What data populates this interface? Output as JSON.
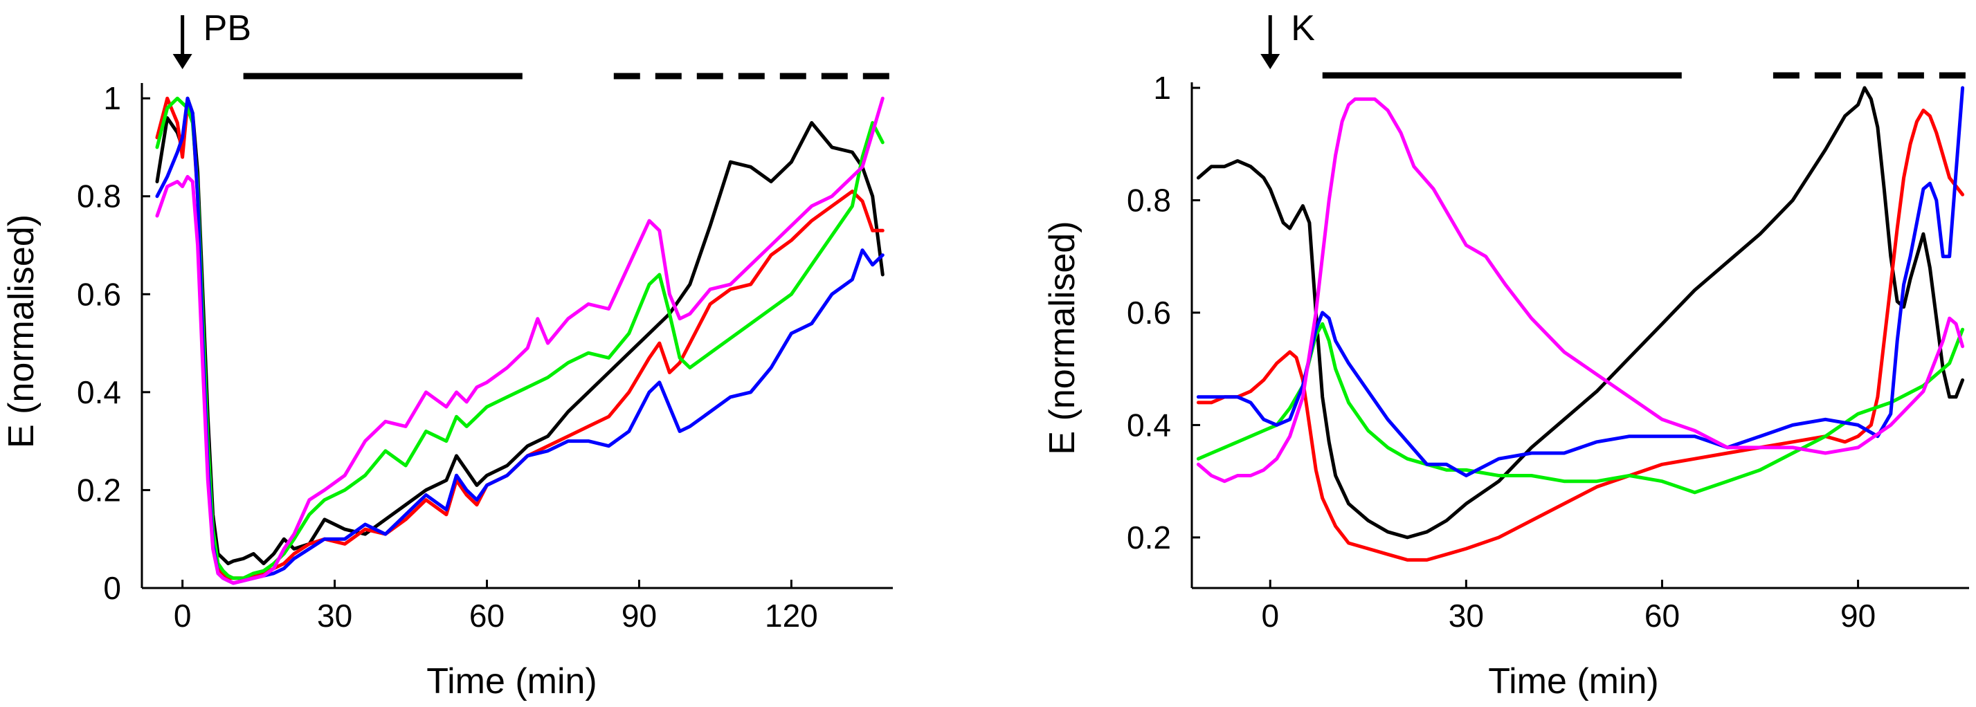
{
  "chart_data": [
    {
      "type": "line",
      "panel": "left",
      "title": "",
      "xlabel": "Time (min)",
      "ylabel": "E (normalised)",
      "xlim": [
        -8,
        140
      ],
      "ylim": [
        0,
        1.02
      ],
      "xticks": [
        0,
        30,
        60,
        90,
        120
      ],
      "yticks": [
        0,
        0.2,
        0.4,
        0.6,
        0.8,
        1
      ],
      "ytick_labels": [
        "0",
        "0.2",
        "0.4",
        "0.6",
        "0.8",
        "1"
      ],
      "arrow": {
        "label": "PB",
        "x": 0
      },
      "solid_bar": [
        12,
        67
      ],
      "dashed_bar": [
        85,
        140
      ],
      "series": [
        {
          "name": "black",
          "color": "#000000",
          "x": [
            -5,
            -3,
            -1,
            0,
            1,
            2,
            3,
            4,
            5,
            6,
            7,
            8,
            9,
            10,
            12,
            14,
            16,
            18,
            20,
            22,
            25,
            28,
            32,
            36,
            40,
            44,
            48,
            52,
            54,
            56,
            58,
            60,
            64,
            68,
            72,
            76,
            80,
            84,
            88,
            92,
            96,
            100,
            104,
            108,
            112,
            116,
            120,
            124,
            128,
            132,
            134,
            136,
            138
          ],
          "y": [
            0.83,
            0.96,
            0.93,
            0.9,
            1.0,
            0.97,
            0.85,
            0.6,
            0.35,
            0.15,
            0.07,
            0.06,
            0.05,
            0.055,
            0.06,
            0.07,
            0.05,
            0.07,
            0.1,
            0.08,
            0.09,
            0.14,
            0.12,
            0.11,
            0.14,
            0.17,
            0.2,
            0.22,
            0.27,
            0.24,
            0.21,
            0.23,
            0.25,
            0.29,
            0.31,
            0.36,
            0.4,
            0.44,
            0.48,
            0.52,
            0.56,
            0.62,
            0.74,
            0.87,
            0.86,
            0.83,
            0.87,
            0.95,
            0.9,
            0.89,
            0.86,
            0.8,
            0.64
          ]
        },
        {
          "name": "red",
          "color": "#ff0000",
          "x": [
            -5,
            -3,
            -1,
            0,
            1,
            2,
            3,
            4,
            5,
            6,
            7,
            8,
            9,
            10,
            12,
            14,
            16,
            18,
            20,
            22,
            25,
            28,
            32,
            36,
            40,
            44,
            48,
            52,
            54,
            56,
            58,
            60,
            64,
            68,
            72,
            76,
            80,
            84,
            88,
            92,
            94,
            96,
            98,
            100,
            104,
            108,
            112,
            116,
            120,
            124,
            128,
            132,
            134,
            136,
            138
          ],
          "y": [
            0.92,
            1.0,
            0.95,
            0.88,
            0.99,
            0.96,
            0.8,
            0.5,
            0.25,
            0.1,
            0.04,
            0.03,
            0.02,
            0.02,
            0.02,
            0.025,
            0.03,
            0.04,
            0.05,
            0.07,
            0.09,
            0.1,
            0.09,
            0.12,
            0.11,
            0.14,
            0.18,
            0.15,
            0.22,
            0.19,
            0.17,
            0.21,
            0.23,
            0.27,
            0.29,
            0.31,
            0.33,
            0.35,
            0.4,
            0.47,
            0.5,
            0.44,
            0.46,
            0.5,
            0.58,
            0.61,
            0.62,
            0.68,
            0.71,
            0.75,
            0.78,
            0.81,
            0.79,
            0.73,
            0.73
          ]
        },
        {
          "name": "green",
          "color": "#00ee00",
          "x": [
            -5,
            -3,
            -1,
            0,
            1,
            2,
            3,
            4,
            5,
            6,
            7,
            8,
            9,
            10,
            12,
            14,
            16,
            18,
            20,
            22,
            25,
            28,
            32,
            36,
            40,
            44,
            48,
            52,
            54,
            56,
            58,
            60,
            64,
            68,
            72,
            76,
            80,
            84,
            88,
            92,
            94,
            96,
            98,
            100,
            104,
            108,
            112,
            116,
            120,
            124,
            128,
            132,
            134,
            136,
            138
          ],
          "y": [
            0.9,
            0.98,
            1.0,
            0.99,
            0.98,
            0.95,
            0.82,
            0.55,
            0.3,
            0.12,
            0.05,
            0.035,
            0.025,
            0.02,
            0.02,
            0.03,
            0.035,
            0.05,
            0.07,
            0.1,
            0.15,
            0.18,
            0.2,
            0.23,
            0.28,
            0.25,
            0.32,
            0.3,
            0.35,
            0.33,
            0.35,
            0.37,
            0.39,
            0.41,
            0.43,
            0.46,
            0.48,
            0.47,
            0.52,
            0.62,
            0.64,
            0.56,
            0.47,
            0.45,
            0.48,
            0.51,
            0.54,
            0.57,
            0.6,
            0.66,
            0.72,
            0.78,
            0.88,
            0.95,
            0.91
          ]
        },
        {
          "name": "blue",
          "color": "#0000ff",
          "x": [
            -5,
            -3,
            -1,
            0,
            1,
            2,
            3,
            4,
            5,
            6,
            7,
            8,
            9,
            10,
            12,
            14,
            16,
            18,
            20,
            22,
            25,
            28,
            32,
            36,
            40,
            44,
            48,
            52,
            54,
            56,
            58,
            60,
            64,
            68,
            72,
            76,
            80,
            84,
            88,
            92,
            94,
            96,
            98,
            100,
            104,
            108,
            112,
            116,
            120,
            124,
            128,
            132,
            134,
            136,
            138
          ],
          "y": [
            0.8,
            0.84,
            0.89,
            0.92,
            1.0,
            0.97,
            0.8,
            0.5,
            0.25,
            0.09,
            0.03,
            0.02,
            0.015,
            0.01,
            0.015,
            0.02,
            0.025,
            0.03,
            0.04,
            0.06,
            0.08,
            0.1,
            0.1,
            0.13,
            0.11,
            0.15,
            0.19,
            0.16,
            0.23,
            0.2,
            0.18,
            0.21,
            0.23,
            0.27,
            0.28,
            0.3,
            0.3,
            0.29,
            0.32,
            0.4,
            0.42,
            0.37,
            0.32,
            0.33,
            0.36,
            0.39,
            0.4,
            0.45,
            0.52,
            0.54,
            0.6,
            0.63,
            0.69,
            0.66,
            0.68
          ]
        },
        {
          "name": "magenta",
          "color": "#ff00ff",
          "x": [
            -5,
            -3,
            -1,
            0,
            1,
            2,
            3,
            4,
            5,
            6,
            7,
            8,
            9,
            10,
            12,
            14,
            16,
            18,
            20,
            22,
            25,
            28,
            32,
            36,
            40,
            44,
            48,
            52,
            54,
            56,
            58,
            60,
            64,
            68,
            70,
            72,
            76,
            80,
            84,
            88,
            92,
            94,
            96,
            98,
            100,
            104,
            108,
            112,
            116,
            120,
            124,
            128,
            132,
            134,
            136,
            138
          ],
          "y": [
            0.76,
            0.82,
            0.83,
            0.82,
            0.84,
            0.83,
            0.7,
            0.45,
            0.22,
            0.08,
            0.03,
            0.02,
            0.015,
            0.01,
            0.015,
            0.02,
            0.025,
            0.04,
            0.08,
            0.11,
            0.18,
            0.2,
            0.23,
            0.3,
            0.34,
            0.33,
            0.4,
            0.37,
            0.4,
            0.38,
            0.41,
            0.42,
            0.45,
            0.49,
            0.55,
            0.5,
            0.55,
            0.58,
            0.57,
            0.66,
            0.75,
            0.73,
            0.6,
            0.55,
            0.56,
            0.61,
            0.62,
            0.66,
            0.7,
            0.74,
            0.78,
            0.8,
            0.84,
            0.86,
            0.93,
            1.0
          ]
        }
      ]
    },
    {
      "type": "line",
      "panel": "right",
      "title": "",
      "xlabel": "Time (min)",
      "ylabel": "E (normalised)",
      "xlim": [
        -12,
        107
      ],
      "ylim": [
        0.11,
        1.0
      ],
      "xticks": [
        0,
        30,
        60,
        90
      ],
      "yticks": [
        0.2,
        0.4,
        0.6,
        0.8,
        1
      ],
      "ytick_labels": [
        "0.2",
        "0.4",
        "0.6",
        "0.8",
        "1"
      ],
      "arrow": {
        "label": "K",
        "x": 0
      },
      "solid_bar": [
        8,
        63
      ],
      "dashed_bar": [
        77,
        107
      ],
      "series": [
        {
          "name": "black",
          "color": "#000000",
          "x": [
            -11,
            -9,
            -7,
            -5,
            -3,
            -1,
            0,
            1,
            2,
            3,
            4,
            5,
            6,
            7,
            8,
            9,
            10,
            12,
            15,
            18,
            21,
            24,
            27,
            30,
            35,
            40,
            45,
            50,
            55,
            60,
            65,
            70,
            75,
            80,
            85,
            88,
            90,
            91,
            92,
            93,
            94,
            95,
            96,
            97,
            98,
            100,
            101,
            102,
            103,
            104,
            105,
            106
          ],
          "y": [
            0.84,
            0.86,
            0.86,
            0.87,
            0.86,
            0.84,
            0.82,
            0.79,
            0.76,
            0.75,
            0.77,
            0.79,
            0.76,
            0.6,
            0.45,
            0.37,
            0.31,
            0.26,
            0.23,
            0.21,
            0.2,
            0.21,
            0.23,
            0.26,
            0.3,
            0.36,
            0.41,
            0.46,
            0.52,
            0.58,
            0.64,
            0.69,
            0.74,
            0.8,
            0.89,
            0.95,
            0.97,
            1.0,
            0.98,
            0.93,
            0.82,
            0.7,
            0.62,
            0.61,
            0.66,
            0.74,
            0.68,
            0.59,
            0.5,
            0.45,
            0.45,
            0.48
          ]
        },
        {
          "name": "red",
          "color": "#ff0000",
          "x": [
            -11,
            -9,
            -7,
            -5,
            -3,
            -1,
            1,
            3,
            4,
            5,
            6,
            7,
            8,
            10,
            12,
            15,
            18,
            21,
            24,
            27,
            30,
            35,
            40,
            45,
            50,
            55,
            60,
            65,
            70,
            75,
            80,
            85,
            88,
            90,
            92,
            93,
            94,
            95,
            96,
            97,
            98,
            99,
            100,
            101,
            102,
            103,
            104,
            106
          ],
          "y": [
            0.44,
            0.44,
            0.45,
            0.45,
            0.46,
            0.48,
            0.51,
            0.53,
            0.52,
            0.48,
            0.4,
            0.32,
            0.27,
            0.22,
            0.19,
            0.18,
            0.17,
            0.16,
            0.16,
            0.17,
            0.18,
            0.2,
            0.23,
            0.26,
            0.29,
            0.31,
            0.33,
            0.34,
            0.35,
            0.36,
            0.37,
            0.38,
            0.37,
            0.38,
            0.4,
            0.45,
            0.55,
            0.65,
            0.75,
            0.84,
            0.9,
            0.94,
            0.96,
            0.95,
            0.92,
            0.88,
            0.84,
            0.81
          ]
        },
        {
          "name": "green",
          "color": "#00ee00",
          "x": [
            -11,
            -9,
            -7,
            -5,
            -3,
            -1,
            1,
            3,
            5,
            7,
            8,
            9,
            10,
            12,
            15,
            18,
            21,
            24,
            27,
            30,
            35,
            40,
            45,
            50,
            55,
            60,
            65,
            70,
            75,
            80,
            85,
            90,
            95,
            100,
            104,
            106
          ],
          "y": [
            0.34,
            0.35,
            0.36,
            0.37,
            0.38,
            0.39,
            0.4,
            0.43,
            0.47,
            0.56,
            0.58,
            0.55,
            0.5,
            0.44,
            0.39,
            0.36,
            0.34,
            0.33,
            0.32,
            0.32,
            0.31,
            0.31,
            0.3,
            0.3,
            0.31,
            0.3,
            0.28,
            0.3,
            0.32,
            0.35,
            0.38,
            0.42,
            0.44,
            0.47,
            0.51,
            0.57
          ]
        },
        {
          "name": "blue",
          "color": "#0000ff",
          "x": [
            -11,
            -9,
            -7,
            -5,
            -3,
            -1,
            1,
            3,
            5,
            7,
            8,
            9,
            10,
            12,
            15,
            18,
            21,
            24,
            27,
            30,
            35,
            40,
            45,
            50,
            55,
            60,
            65,
            70,
            75,
            80,
            85,
            90,
            93,
            95,
            96,
            97,
            98,
            99,
            100,
            101,
            102,
            103,
            104,
            105,
            106
          ],
          "y": [
            0.45,
            0.45,
            0.45,
            0.45,
            0.44,
            0.41,
            0.4,
            0.41,
            0.47,
            0.57,
            0.6,
            0.59,
            0.55,
            0.51,
            0.46,
            0.41,
            0.37,
            0.33,
            0.33,
            0.31,
            0.34,
            0.35,
            0.35,
            0.37,
            0.38,
            0.38,
            0.38,
            0.36,
            0.38,
            0.4,
            0.41,
            0.4,
            0.38,
            0.42,
            0.55,
            0.65,
            0.7,
            0.76,
            0.82,
            0.83,
            0.8,
            0.7,
            0.7,
            0.85,
            1.0
          ]
        },
        {
          "name": "magenta",
          "color": "#ff00ff",
          "x": [
            -11,
            -9,
            -7,
            -5,
            -3,
            -1,
            1,
            3,
            5,
            7,
            8,
            9,
            10,
            11,
            12,
            13,
            14,
            15,
            16,
            18,
            20,
            22,
            25,
            28,
            30,
            33,
            36,
            40,
            45,
            50,
            55,
            60,
            65,
            70,
            75,
            80,
            85,
            90,
            95,
            100,
            103,
            104,
            105,
            106
          ],
          "y": [
            0.33,
            0.31,
            0.3,
            0.31,
            0.31,
            0.32,
            0.34,
            0.38,
            0.45,
            0.6,
            0.7,
            0.8,
            0.88,
            0.94,
            0.97,
            0.98,
            0.98,
            0.98,
            0.98,
            0.96,
            0.92,
            0.86,
            0.82,
            0.76,
            0.72,
            0.7,
            0.65,
            0.59,
            0.53,
            0.49,
            0.45,
            0.41,
            0.39,
            0.36,
            0.36,
            0.36,
            0.35,
            0.36,
            0.4,
            0.46,
            0.55,
            0.59,
            0.58,
            0.54
          ]
        }
      ]
    }
  ]
}
